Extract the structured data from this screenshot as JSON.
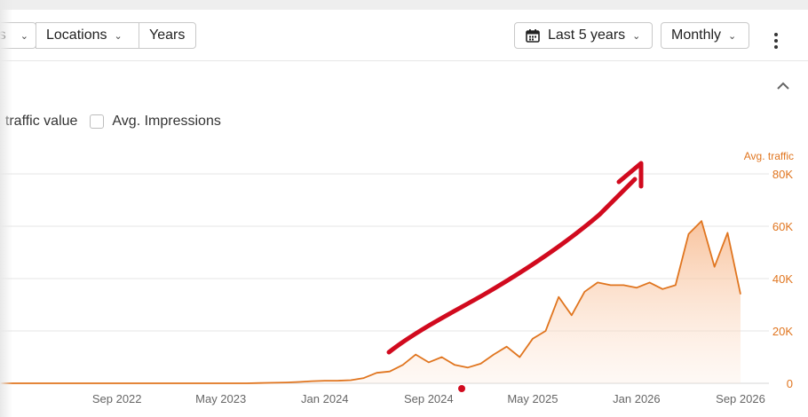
{
  "toolbar": {
    "filters": [
      {
        "label": "s"
      },
      {
        "label": "Locations"
      },
      {
        "label": "Years"
      }
    ],
    "date_range": "Last 5 years",
    "granularity": "Monthly"
  },
  "legend": {
    "traffic_value_label": ". traffic value",
    "impressions_label": "Avg. Impressions"
  },
  "colors": {
    "series": "#e0751f",
    "annotation": "#d10a1e",
    "grid": "#e4e4e4"
  },
  "chart_data": {
    "type": "area",
    "ylabel": "Avg. traffic",
    "y_axis_position": "right",
    "ylim": [
      0,
      80000
    ],
    "yticks": [
      0,
      20000,
      40000,
      60000,
      80000
    ],
    "ytick_labels": [
      "0",
      "20K",
      "40K",
      "60K",
      "80K"
    ],
    "grid": true,
    "xtick_labels": [
      "Sep 2022",
      "May 2023",
      "Jan 2024",
      "Sep 2024",
      "May 2025",
      "Jan 2026",
      "Sep 2026"
    ],
    "series": [
      {
        "values": [
          0,
          0,
          0,
          0,
          0,
          0,
          0,
          0,
          0,
          0,
          0,
          0,
          0,
          0,
          0,
          0,
          0,
          0,
          0,
          0,
          100,
          200,
          300,
          500,
          800,
          1000,
          1000,
          1200,
          2000,
          4000,
          4500,
          7000,
          11000,
          8000,
          10000,
          7000,
          6000,
          7500,
          11000,
          14000,
          10000,
          17000,
          20000,
          33000,
          26000,
          35000,
          38500,
          37500,
          37500,
          36500,
          38500,
          36000,
          37500,
          57000,
          62000,
          44500,
          57500,
          34000
        ]
      }
    ],
    "annotations": [
      {
        "type": "hand-drawn-arrow",
        "direction": "up-right"
      },
      {
        "type": "dot"
      }
    ]
  }
}
